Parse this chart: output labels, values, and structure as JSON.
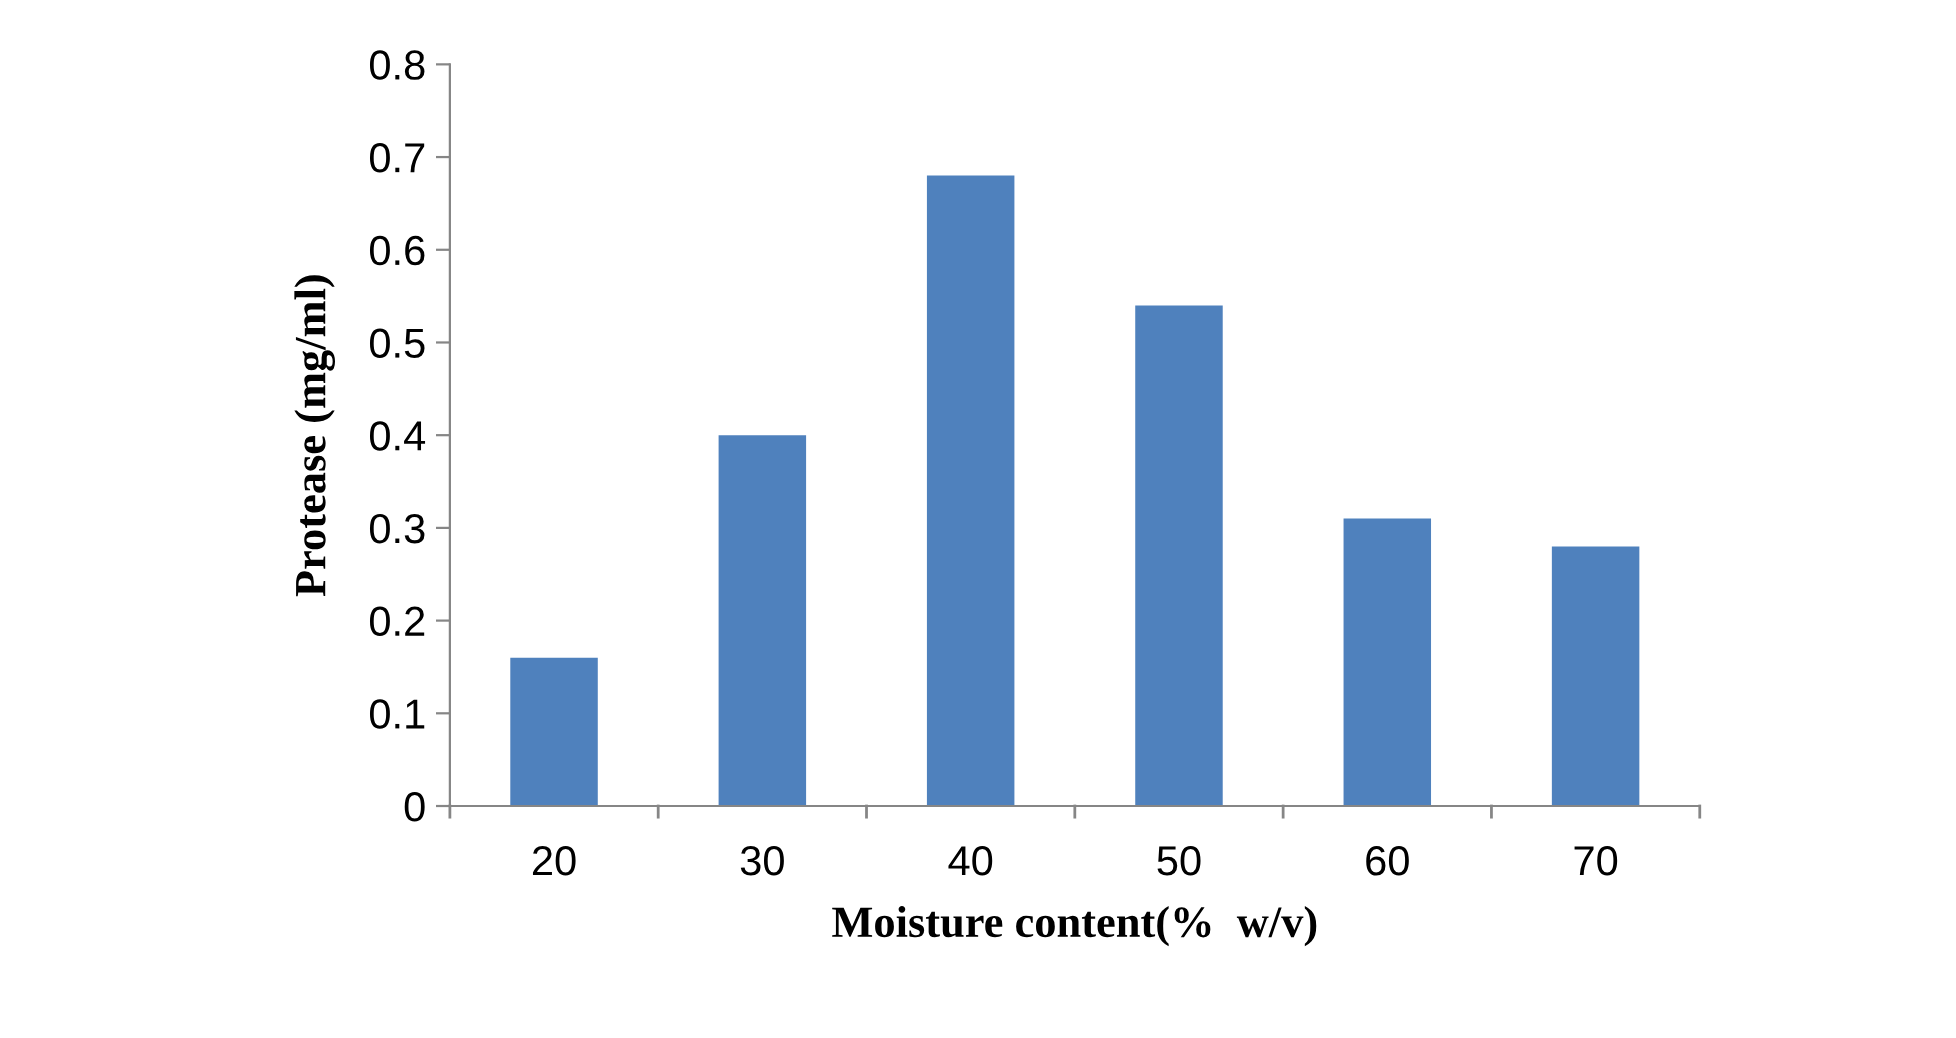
{
  "chart_data": {
    "type": "bar",
    "xlabel": "Moisture content(%  w/v)",
    "ylabel": "Protease (mg/ml)",
    "categories": [
      "20",
      "30",
      "40",
      "50",
      "60",
      "70"
    ],
    "values": [
      0.16,
      0.4,
      0.68,
      0.54,
      0.31,
      0.28
    ],
    "color": "#4f81bd",
    "ylim": [
      0,
      0.8
    ],
    "yticks": [
      0,
      0.1,
      0.2,
      0.3,
      0.4,
      0.5,
      0.6,
      0.7,
      0.8
    ],
    "grid": false,
    "legend": false
  }
}
